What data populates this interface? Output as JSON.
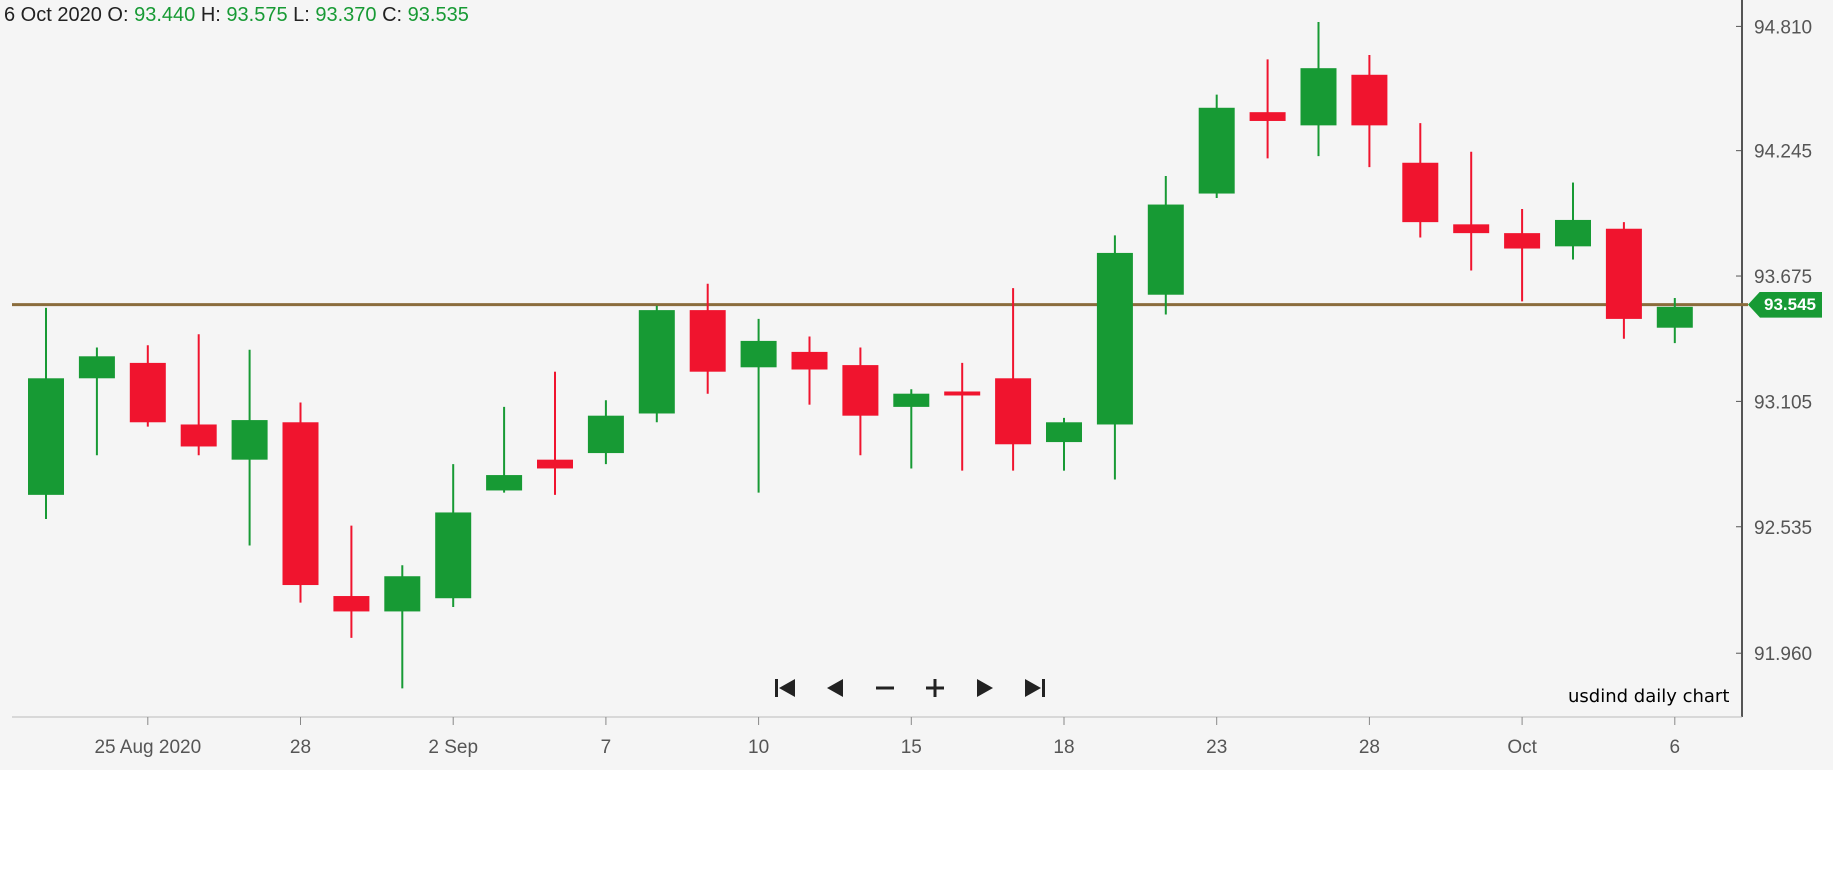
{
  "header": {
    "date": "6 Oct 2020",
    "o_label": "O:",
    "o_value": "93.440",
    "h_label": "H:",
    "h_value": "93.575",
    "l_label": "L:",
    "l_value": "93.370",
    "c_label": "C:",
    "c_value": "93.535"
  },
  "price_tag": "93.545",
  "caption": "usdind daily chart",
  "nav": {
    "first": "first-icon",
    "prev": "prev-icon",
    "zoom_out": "zoom-out-icon",
    "zoom_in": "zoom-in-icon",
    "next": "next-icon",
    "last": "last-icon"
  },
  "colors": {
    "up": "#179a34",
    "down": "#f0142e",
    "level_line": "#8a6c3c",
    "tag": "#179a34"
  },
  "chart_data": {
    "type": "candlestick",
    "title": "",
    "ylim": [
      91.67,
      94.93
    ],
    "y_ticks": [
      "94.810",
      "94.245",
      "93.675",
      "93.105",
      "92.535",
      "91.960"
    ],
    "x_ticks": [
      {
        "label": "25 Aug 2020",
        "index": 2
      },
      {
        "label": "28",
        "index": 5
      },
      {
        "label": "2 Sep",
        "index": 8
      },
      {
        "label": "7",
        "index": 11
      },
      {
        "label": "10",
        "index": 14
      },
      {
        "label": "15",
        "index": 17
      },
      {
        "label": "18",
        "index": 20
      },
      {
        "label": "23",
        "index": 23
      },
      {
        "label": "28",
        "index": 26
      },
      {
        "label": "Oct",
        "index": 29
      },
      {
        "label": "6",
        "index": 32
      }
    ],
    "horizontal_line": 93.545,
    "candles": [
      {
        "o": 92.68,
        "h": 93.53,
        "l": 92.57,
        "c": 93.21
      },
      {
        "o": 93.21,
        "h": 93.35,
        "l": 92.86,
        "c": 93.31
      },
      {
        "o": 93.28,
        "h": 93.36,
        "l": 92.99,
        "c": 93.01
      },
      {
        "o": 93.0,
        "h": 93.41,
        "l": 92.86,
        "c": 92.9
      },
      {
        "o": 92.84,
        "h": 93.34,
        "l": 92.45,
        "c": 93.02
      },
      {
        "o": 93.01,
        "h": 93.1,
        "l": 92.19,
        "c": 92.27
      },
      {
        "o": 92.22,
        "h": 92.54,
        "l": 92.03,
        "c": 92.15
      },
      {
        "o": 92.15,
        "h": 92.36,
        "l": 91.8,
        "c": 92.31
      },
      {
        "o": 92.21,
        "h": 92.82,
        "l": 92.17,
        "c": 92.6
      },
      {
        "o": 92.7,
        "h": 93.08,
        "l": 92.69,
        "c": 92.77
      },
      {
        "o": 92.84,
        "h": 93.24,
        "l": 92.68,
        "c": 92.8
      },
      {
        "o": 92.87,
        "h": 93.11,
        "l": 92.82,
        "c": 93.04
      },
      {
        "o": 93.05,
        "h": 93.54,
        "l": 93.01,
        "c": 93.52
      },
      {
        "o": 93.52,
        "h": 93.64,
        "l": 93.14,
        "c": 93.24
      },
      {
        "o": 93.26,
        "h": 93.48,
        "l": 92.69,
        "c": 93.38
      },
      {
        "o": 93.33,
        "h": 93.4,
        "l": 93.09,
        "c": 93.25
      },
      {
        "o": 93.27,
        "h": 93.35,
        "l": 92.86,
        "c": 93.04
      },
      {
        "o": 93.08,
        "h": 93.16,
        "l": 92.8,
        "c": 93.14
      },
      {
        "o": 93.15,
        "h": 93.28,
        "l": 92.79,
        "c": 93.14
      },
      {
        "o": 93.21,
        "h": 93.62,
        "l": 92.79,
        "c": 92.91
      },
      {
        "o": 92.92,
        "h": 93.03,
        "l": 92.79,
        "c": 93.01
      },
      {
        "o": 93.0,
        "h": 93.86,
        "l": 92.75,
        "c": 93.78
      },
      {
        "o": 93.59,
        "h": 94.13,
        "l": 93.5,
        "c": 94.0
      },
      {
        "o": 94.05,
        "h": 94.5,
        "l": 94.03,
        "c": 94.44
      },
      {
        "o": 94.42,
        "h": 94.66,
        "l": 94.21,
        "c": 94.38
      },
      {
        "o": 94.36,
        "h": 94.83,
        "l": 94.22,
        "c": 94.62
      },
      {
        "o": 94.59,
        "h": 94.68,
        "l": 94.17,
        "c": 94.36
      },
      {
        "o": 94.19,
        "h": 94.37,
        "l": 93.85,
        "c": 93.92
      },
      {
        "o": 93.91,
        "h": 94.24,
        "l": 93.7,
        "c": 93.87
      },
      {
        "o": 93.87,
        "h": 93.98,
        "l": 93.56,
        "c": 93.8
      },
      {
        "o": 93.81,
        "h": 94.1,
        "l": 93.75,
        "c": 93.93
      },
      {
        "o": 93.89,
        "h": 93.92,
        "l": 93.39,
        "c": 93.48
      },
      {
        "o": 93.44,
        "h": 93.575,
        "l": 93.37,
        "c": 93.535
      }
    ]
  }
}
